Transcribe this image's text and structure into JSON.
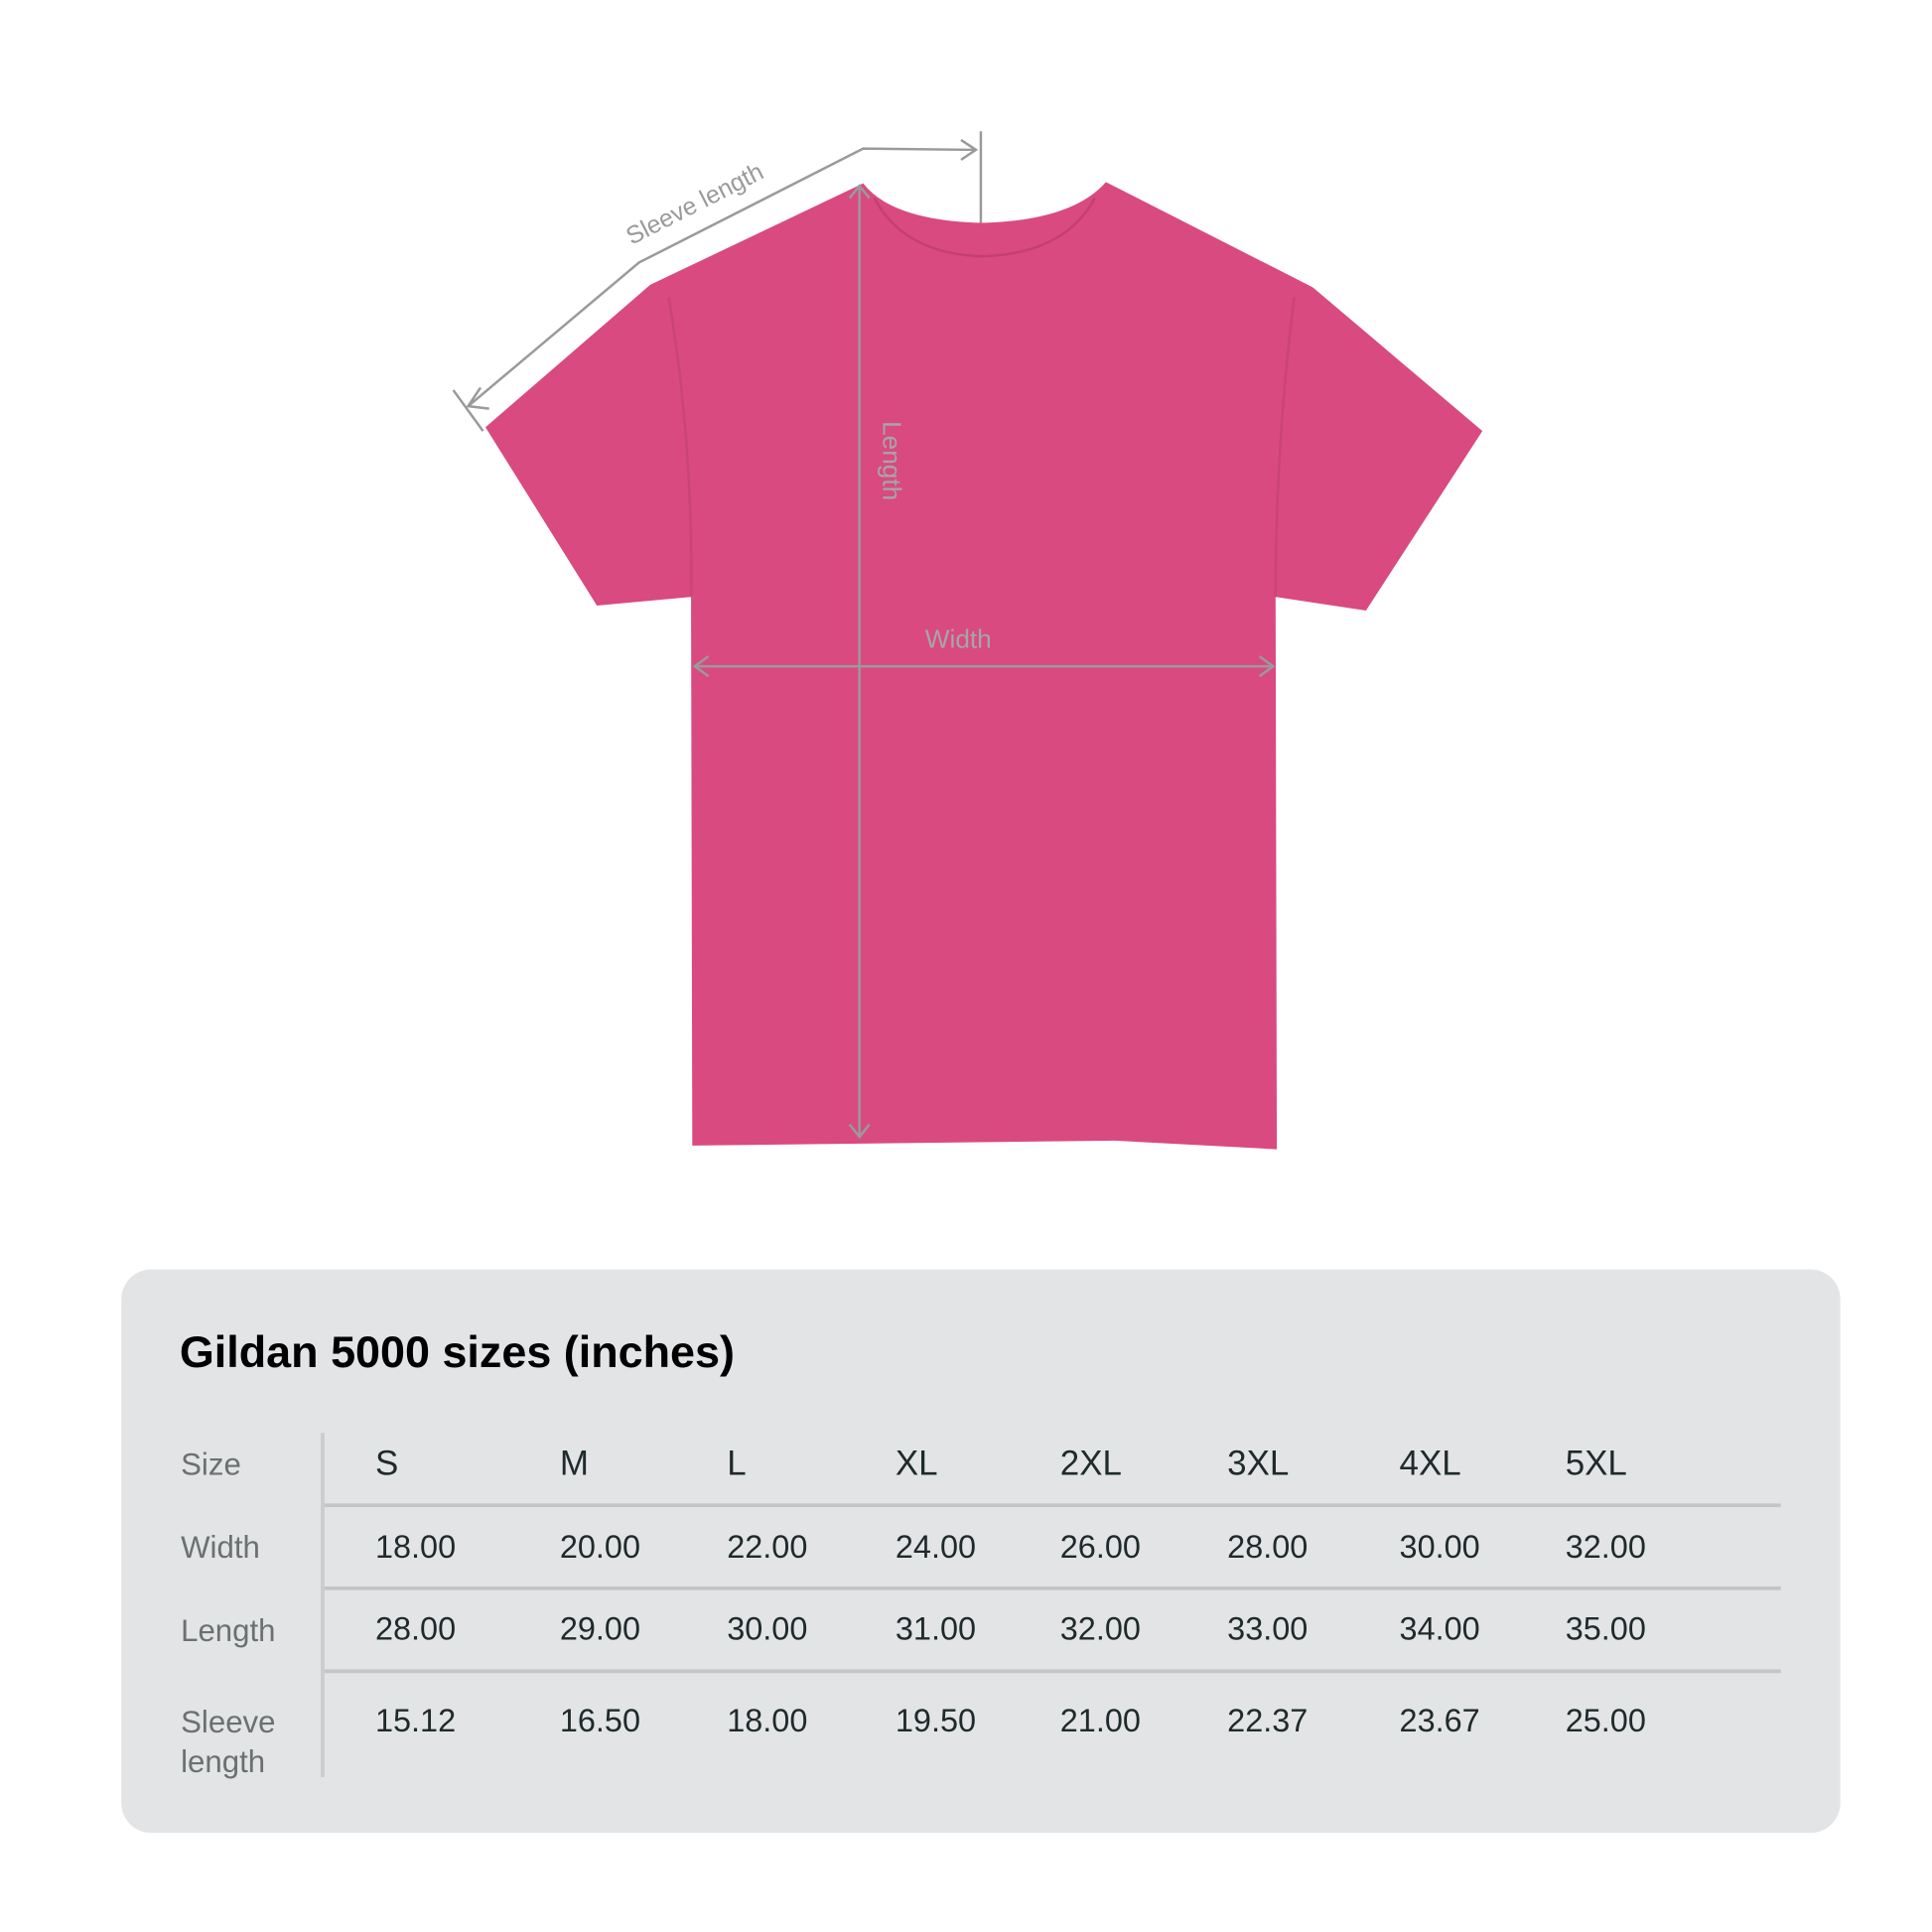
{
  "diagram": {
    "shirt_color": "#d94a80",
    "measure_color": "#9a9a9a",
    "labels": {
      "sleeve": "Sleeve length",
      "length": "Length",
      "width": "Width"
    }
  },
  "table": {
    "title": "Gildan 5000 sizes (inches)",
    "header_label": "Size",
    "sizes": [
      "S",
      "M",
      "L",
      "XL",
      "2XL",
      "3XL",
      "4XL",
      "5XL"
    ],
    "rows": [
      {
        "label": "Width",
        "values": [
          "18.00",
          "20.00",
          "22.00",
          "24.00",
          "26.00",
          "28.00",
          "30.00",
          "32.00"
        ]
      },
      {
        "label": "Length",
        "values": [
          "28.00",
          "29.00",
          "30.00",
          "31.00",
          "32.00",
          "33.00",
          "34.00",
          "35.00"
        ]
      },
      {
        "label": "Sleeve length",
        "values": [
          "15.12",
          "16.50",
          "18.00",
          "19.50",
          "21.00",
          "22.37",
          "23.67",
          "25.00"
        ]
      }
    ]
  }
}
